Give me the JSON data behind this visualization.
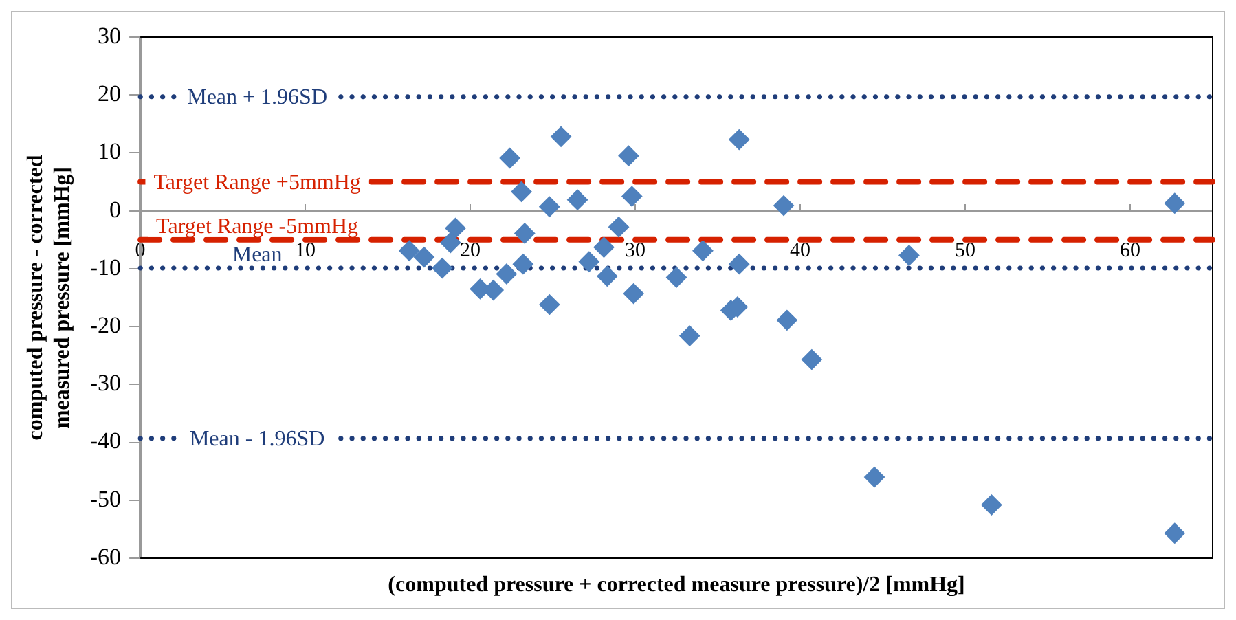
{
  "chart_data": {
    "type": "scatter",
    "xlabel": "(computed pressure + corrected measure pressure)/2 [mmHg]",
    "ylabel": "computed pressure - corrected measured pressure [mmHg]",
    "x": [
      16.3,
      17.2,
      18.3,
      19.1,
      18.8,
      20.6,
      21.4,
      22.2,
      23.2,
      23.3,
      23.1,
      22.4,
      24.8,
      24.8,
      25.5,
      26.5,
      27.2,
      28.1,
      28.3,
      29.0,
      29.6,
      29.8,
      29.9,
      32.5,
      33.3,
      34.1,
      35.8,
      36.2,
      36.3,
      36.3,
      39.0,
      39.2,
      40.7,
      46.6,
      62.7,
      44.5,
      51.6,
      62.7
    ],
    "values": [
      -6.9,
      -8.0,
      -9.9,
      -3.0,
      -5.5,
      -13.5,
      -13.7,
      -10.9,
      -9.2,
      -3.9,
      3.3,
      9.1,
      -16.2,
      0.7,
      12.8,
      1.9,
      -8.8,
      -6.3,
      -11.3,
      -2.8,
      9.5,
      2.5,
      -14.3,
      -11.5,
      -21.6,
      -6.9,
      -17.2,
      -16.6,
      -9.2,
      12.3,
      0.9,
      -18.9,
      -25.7,
      -7.7,
      1.3,
      -46.0,
      -50.8,
      -55.7
    ],
    "color": "#4f81bd",
    "marker": "diamond",
    "grid": false,
    "legend": false,
    "xlim": [
      0,
      65
    ],
    "xticks": [
      0,
      10,
      20,
      30,
      40,
      50,
      60
    ],
    "ylim": [
      -60,
      30
    ],
    "yticks": [
      -60,
      -50,
      -40,
      -30,
      -20,
      -10,
      0,
      10,
      20,
      30
    ],
    "ref_lines": [
      {
        "axis": "y",
        "value": 19.7,
        "label": "Mean + 1.96SD",
        "color": "#1f3d7a",
        "line_style": "dotted"
      },
      {
        "axis": "y",
        "value": 5,
        "label": "Target Range +5mmHg",
        "color": "#d62100",
        "line_style": "dashed"
      },
      {
        "axis": "y",
        "value": -5,
        "label": "Target Range -5mmHg",
        "color": "#d62100",
        "line_style": "dashed"
      },
      {
        "axis": "y",
        "value": -9.9,
        "label": "Mean",
        "color": "#1f3d7a",
        "line_style": "dotted"
      },
      {
        "axis": "y",
        "value": -39.3,
        "label": "Mean - 1.96SD",
        "color": "#1f3d7a",
        "line_style": "dotted"
      }
    ]
  }
}
